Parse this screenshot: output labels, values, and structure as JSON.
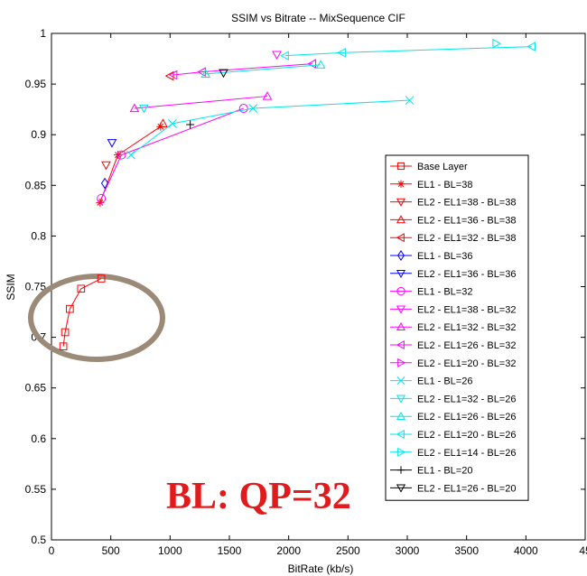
{
  "chart_data": {
    "type": "line",
    "title": "SSIM vs Bitrate -- MixSequence CIF",
    "xlabel": "BitRate (kb/s)",
    "ylabel": "SSIM",
    "xlim": [
      0,
      4500
    ],
    "ylim": [
      0.5,
      1.0
    ],
    "x_ticks": [
      "0",
      "500",
      "1000",
      "1500",
      "2000",
      "2500",
      "3000",
      "3500",
      "4000",
      "45"
    ],
    "y_ticks": [
      "0.5",
      "0.55",
      "0.6",
      "0.65",
      "0.7",
      "0.75",
      "0.8",
      "0.85",
      "0.9",
      "0.95",
      "1"
    ],
    "grid": false,
    "legend_position": "right",
    "annotation": {
      "text": "BL: QP=32",
      "color": "#e11b1b"
    },
    "highlight_ellipse": {
      "color": "#9c8a78",
      "around_series": "Base Layer"
    },
    "series": [
      {
        "name": "Base Layer",
        "color": "#ff0000",
        "marker": "square",
        "line": true,
        "points": [
          [
            100,
            0.691
          ],
          [
            115,
            0.705
          ],
          [
            155,
            0.728
          ],
          [
            250,
            0.748
          ],
          [
            420,
            0.758
          ]
        ]
      },
      {
        "name": "EL1 - BL=38",
        "color": "#ff0000",
        "marker": "star",
        "line": true,
        "points": [
          [
            410,
            0.833
          ],
          [
            560,
            0.88
          ],
          [
            920,
            0.908
          ]
        ]
      },
      {
        "name": "EL2 - EL1=38 - BL=38",
        "color": "#ff0000",
        "marker": "triangle-down",
        "line": false,
        "points": [
          [
            460,
            0.87
          ]
        ]
      },
      {
        "name": "EL2 - EL1=36 - BL=38",
        "color": "#ff0000",
        "marker": "triangle-up",
        "line": false,
        "points": [
          [
            940,
            0.911
          ]
        ]
      },
      {
        "name": "EL2 - EL1=32 - BL=38",
        "color": "#ff0000",
        "marker": "triangle-left",
        "line": false,
        "points": [
          [
            1000,
            0.958
          ]
        ]
      },
      {
        "name": "EL1 - BL=36",
        "color": "#0000ff",
        "marker": "diamond",
        "line": false,
        "points": [
          [
            450,
            0.852
          ]
        ]
      },
      {
        "name": "EL2 - EL1=36 - BL=36",
        "color": "#0000ff",
        "marker": "triangle-down",
        "line": false,
        "points": [
          [
            510,
            0.892
          ]
        ]
      },
      {
        "name": "EL1 - BL=32",
        "color": "#ff00ff",
        "marker": "circle",
        "line": true,
        "points": [
          [
            420,
            0.837
          ],
          [
            590,
            0.88
          ],
          [
            1620,
            0.926
          ]
        ]
      },
      {
        "name": "EL2 - EL1=38 - BL=32",
        "color": "#ff00ff",
        "marker": "triangle-down",
        "line": false,
        "points": [
          [
            1900,
            0.979
          ]
        ]
      },
      {
        "name": "EL2 - EL1=32 - BL=32",
        "color": "#ff00ff",
        "marker": "triangle-up",
        "line": true,
        "points": [
          [
            700,
            0.926
          ],
          [
            1820,
            0.938
          ]
        ]
      },
      {
        "name": "EL2 - EL1=26 - BL=32",
        "color": "#ff00ff",
        "marker": "triangle-left",
        "line": true,
        "points": [
          [
            1030,
            0.959
          ],
          [
            1270,
            0.962
          ],
          [
            2200,
            0.97
          ]
        ]
      },
      {
        "name": "EL2 - EL1=20 - BL=32",
        "color": "#ff00ff",
        "marker": "triangle-right",
        "line": false,
        "points": []
      },
      {
        "name": "EL1 - BL=26",
        "color": "#00e5ee",
        "marker": "x",
        "line": true,
        "points": [
          [
            670,
            0.88
          ],
          [
            1020,
            0.911
          ],
          [
            1700,
            0.926
          ],
          [
            3020,
            0.934
          ]
        ]
      },
      {
        "name": "EL2 - EL1=32 - BL=26",
        "color": "#00e5ee",
        "marker": "triangle-down",
        "line": false,
        "points": [
          [
            780,
            0.926
          ]
        ]
      },
      {
        "name": "EL2 - EL1=26 - BL=26",
        "color": "#00e5ee",
        "marker": "triangle-up",
        "line": true,
        "points": [
          [
            1300,
            0.96
          ],
          [
            2270,
            0.969
          ]
        ]
      },
      {
        "name": "EL2 - EL1=20 - BL=26",
        "color": "#00e5ee",
        "marker": "triangle-left",
        "line": true,
        "points": [
          [
            1970,
            0.978
          ],
          [
            2450,
            0.981
          ],
          [
            4050,
            0.987
          ]
        ]
      },
      {
        "name": "EL2 - EL1=14 - BL=26",
        "color": "#00e5ee",
        "marker": "triangle-right",
        "line": false,
        "points": [
          [
            3750,
            0.99
          ]
        ]
      },
      {
        "name": "EL1 - BL=20",
        "color": "#000000",
        "marker": "plus",
        "line": false,
        "points": [
          [
            1170,
            0.91
          ]
        ]
      },
      {
        "name": "EL2 - EL1=26 - BL=20",
        "color": "#000000",
        "marker": "triangle-down",
        "line": false,
        "points": [
          [
            1450,
            0.961
          ]
        ]
      }
    ]
  }
}
